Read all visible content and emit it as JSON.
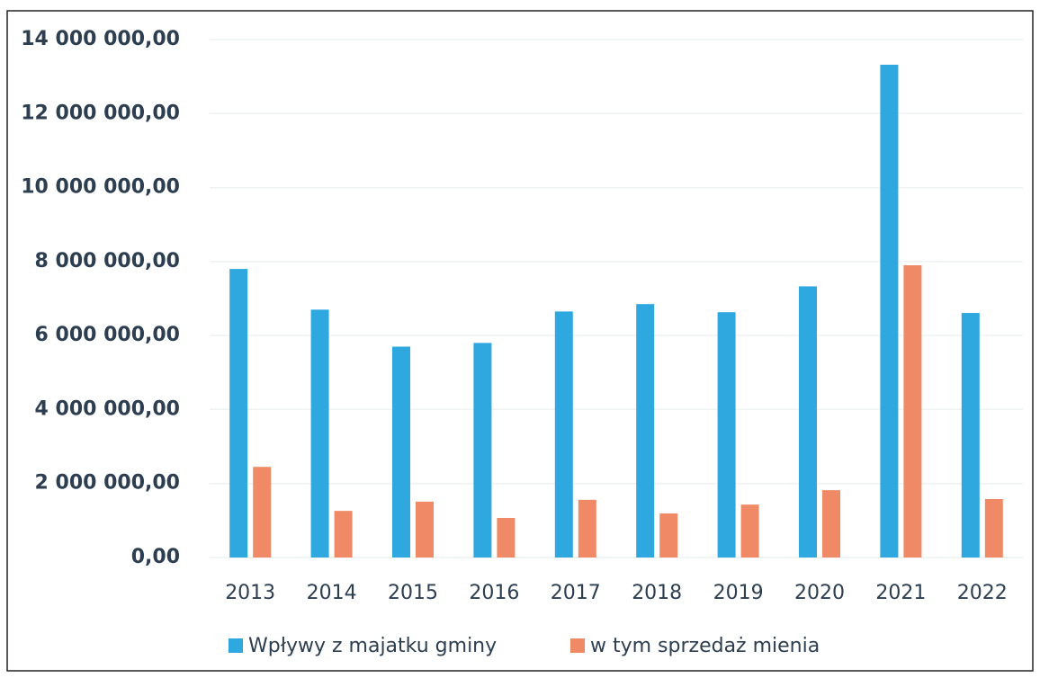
{
  "chart_data": {
    "type": "bar",
    "categories": [
      "2013",
      "2014",
      "2015",
      "2016",
      "2017",
      "2018",
      "2019",
      "2020",
      "2021",
      "2022"
    ],
    "series": [
      {
        "name": "Wpływy z majatku gminy",
        "color": "#2fa8e0",
        "values": [
          7800000,
          6700000,
          5700000,
          5800000,
          6650000,
          6850000,
          6630000,
          7330000,
          13320000,
          6610000
        ]
      },
      {
        "name": "w tym sprzedaż mienia",
        "color": "#f08a66",
        "values": [
          2450000,
          1260000,
          1510000,
          1070000,
          1560000,
          1190000,
          1430000,
          1820000,
          7900000,
          1580000
        ]
      }
    ],
    "ylim": [
      0,
      14000000
    ],
    "yticks": [
      {
        "value": 0,
        "label": "0,00"
      },
      {
        "value": 2000000,
        "label": "2 000 000,00"
      },
      {
        "value": 4000000,
        "label": "4 000 000,00"
      },
      {
        "value": 6000000,
        "label": "6 000 000,00"
      },
      {
        "value": 8000000,
        "label": "8 000 000,00"
      },
      {
        "value": 10000000,
        "label": "10 000 000,00"
      },
      {
        "value": 12000000,
        "label": "12 000 000,00"
      },
      {
        "value": 14000000,
        "label": "14 000 000,00"
      }
    ],
    "grid": true
  }
}
